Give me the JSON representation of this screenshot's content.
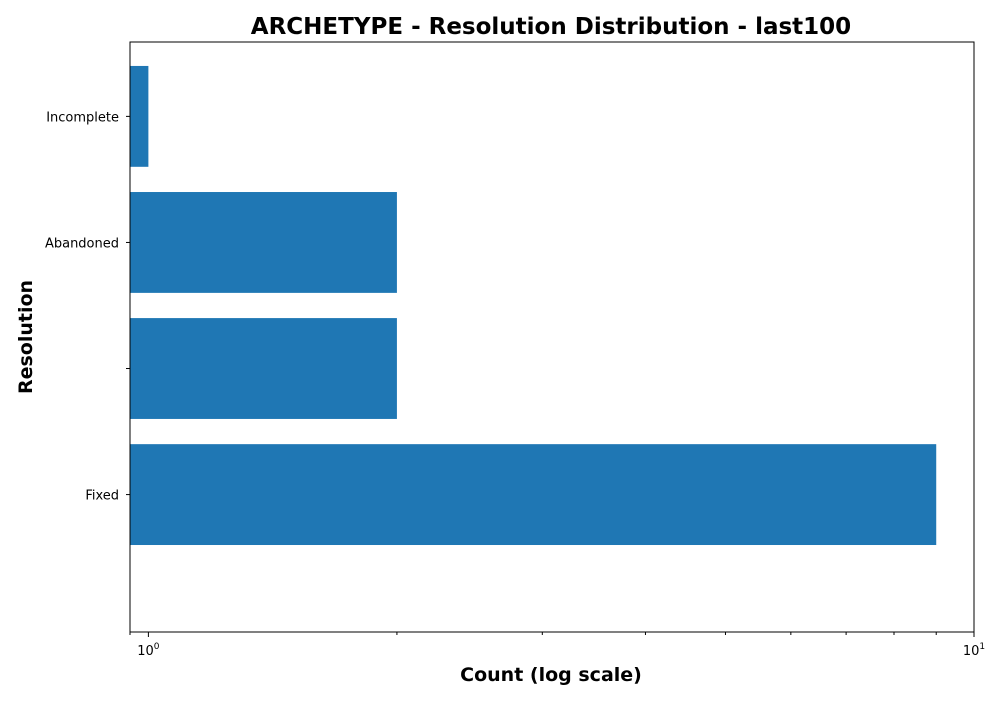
{
  "chart_data": {
    "type": "bar",
    "orientation": "horizontal",
    "title": "ARCHETYPE - Resolution Distribution - last100",
    "xlabel": "Count (log scale)",
    "ylabel": "Resolution",
    "x_scale": "log",
    "xlim": [
      0.95,
      10
    ],
    "categories": [
      "Fixed",
      "",
      "Abandoned",
      "Incomplete"
    ],
    "values": [
      9,
      2,
      2,
      1
    ],
    "x_ticks": [
      {
        "value": 1,
        "base": "10",
        "exp": "0"
      },
      {
        "value": 10,
        "base": "10",
        "exp": "1"
      }
    ],
    "bar_color": "#1f77b4",
    "grid": false,
    "legend": "none"
  }
}
